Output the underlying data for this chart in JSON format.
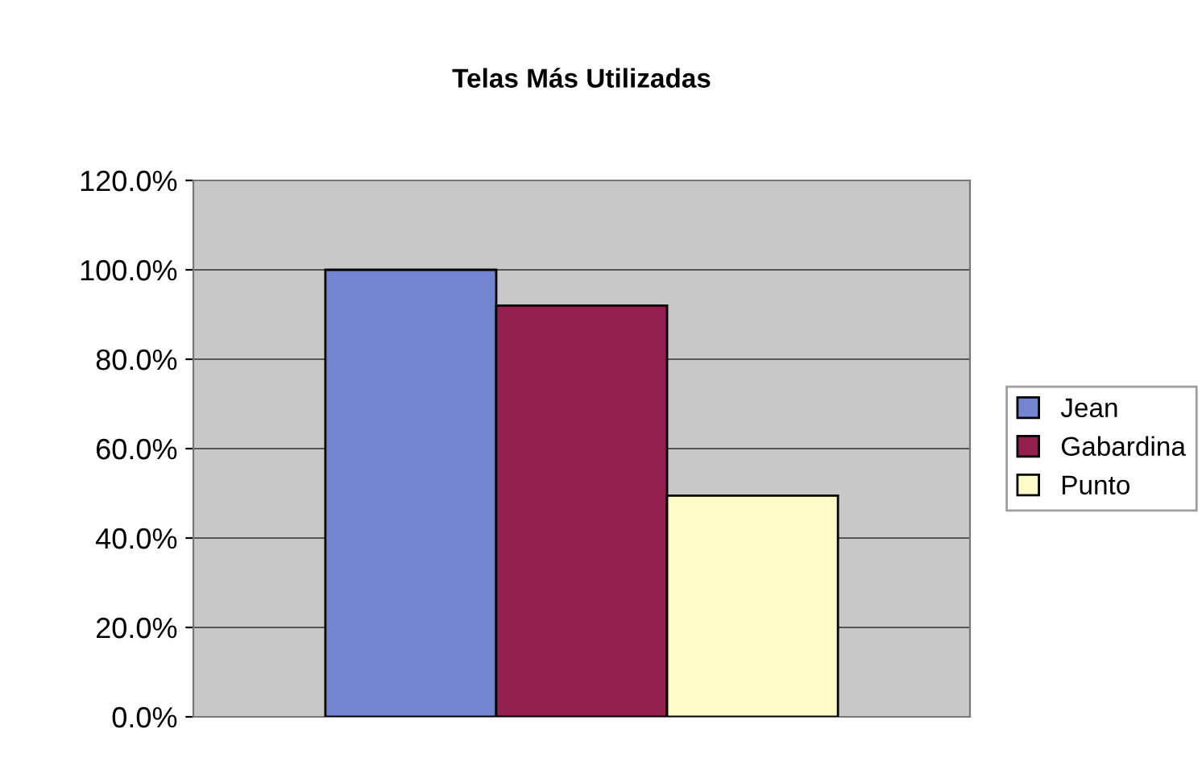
{
  "chart_data": {
    "type": "bar",
    "title": "Telas Más Utilizadas",
    "categories": [
      null
    ],
    "series": [
      {
        "name": "Jean",
        "color": "#7384d0",
        "values": [
          100
        ]
      },
      {
        "name": "Gabardina",
        "color": "#93204f",
        "values": [
          92
        ]
      },
      {
        "name": "Punto",
        "color": "#fdfcc8",
        "values": [
          49.5
        ]
      }
    ],
    "ylim": [
      0,
      120
    ],
    "yticks": [
      {
        "value": 0,
        "label": "0.0%"
      },
      {
        "value": 20,
        "label": "20.0%"
      },
      {
        "value": 40,
        "label": "40.0%"
      },
      {
        "value": 60,
        "label": "60.0%"
      },
      {
        "value": 80,
        "label": "80.0%"
      },
      {
        "value": 100,
        "label": "100.0%"
      },
      {
        "value": 120,
        "label": "120.0%"
      }
    ],
    "grid": "y",
    "legend": "right"
  }
}
